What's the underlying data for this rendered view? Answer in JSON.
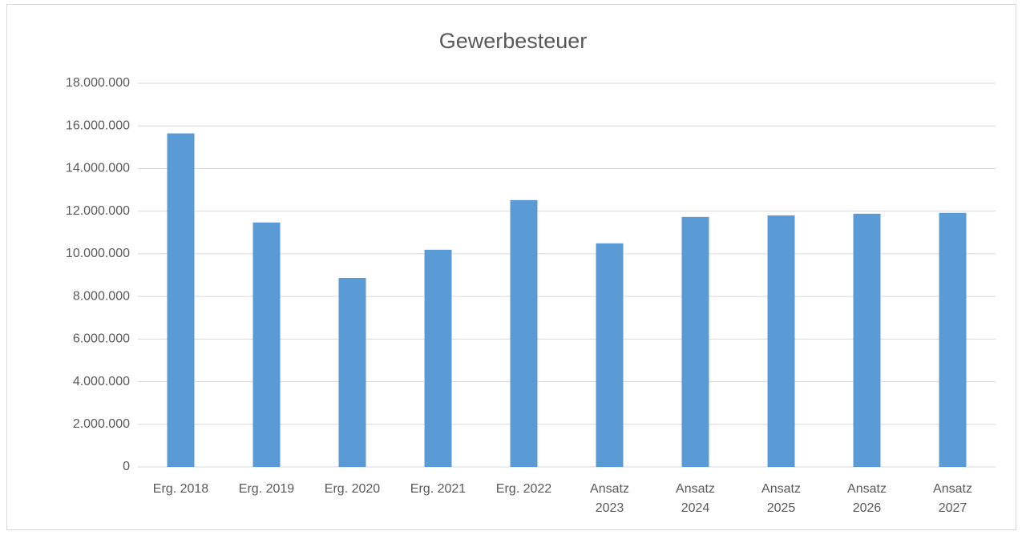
{
  "chart_data": {
    "type": "bar",
    "title": "Gewerbesteuer",
    "categories": [
      "Erg. 2018",
      "Erg. 2019",
      "Erg. 2020",
      "Erg. 2021",
      "Erg. 2022",
      "Ansatz\n2023",
      "Ansatz\n2024",
      "Ansatz\n2025",
      "Ansatz\n2026",
      "Ansatz\n2027"
    ],
    "values": [
      15650000,
      11470000,
      8870000,
      10190000,
      12520000,
      10490000,
      11730000,
      11800000,
      11880000,
      11920000
    ],
    "color": "#5b9bd5",
    "ylim": [
      0,
      18000000
    ],
    "yticks": [
      0,
      {
        "value": 2000000,
        "label": "2.000.000"
      },
      {
        "value": 4000000,
        "label": "4.000.000"
      },
      {
        "value": 6000000,
        "label": "6.000.000"
      },
      {
        "value": 8000000,
        "label": "8.000.000"
      },
      {
        "value": 10000000,
        "label": "10.000.000"
      },
      {
        "value": 12000000,
        "label": "12.000.000"
      },
      {
        "value": 14000000,
        "label": "14.000.000"
      },
      {
        "value": 16000000,
        "label": "16.000.000"
      },
      {
        "value": 18000000,
        "label": "18.000.000"
      }
    ],
    "grid": true
  }
}
